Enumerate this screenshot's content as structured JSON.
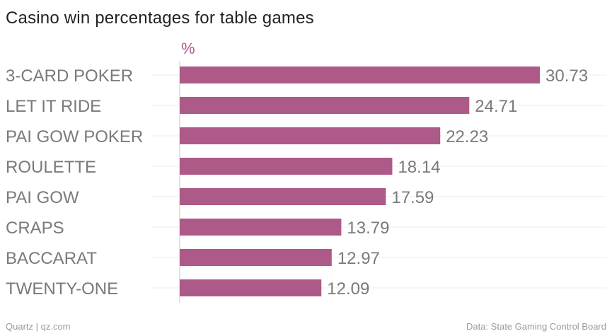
{
  "chart_data": {
    "type": "bar",
    "orientation": "horizontal",
    "title": "Casino win percentages for table games",
    "unit_label": "%",
    "categories": [
      "3-CARD POKER",
      "LET IT RIDE",
      "PAI GOW POKER",
      "ROULETTE",
      "PAI GOW",
      "CRAPS",
      "BACCARAT",
      "TWENTY-ONE"
    ],
    "values": [
      30.73,
      24.71,
      22.23,
      18.14,
      17.59,
      13.79,
      12.97,
      12.09
    ],
    "value_labels": [
      "30.73",
      "24.71",
      "22.23",
      "18.14",
      "17.59",
      "13.79",
      "12.97",
      "12.09"
    ],
    "xlim": [
      0,
      30.73
    ],
    "grid": true,
    "bar_color": "#ad5a89",
    "unit_color": "#ad5a89"
  },
  "footer": {
    "source_left": "Quartz | qz.com",
    "source_right": "Data: State Gaming Control Board"
  }
}
